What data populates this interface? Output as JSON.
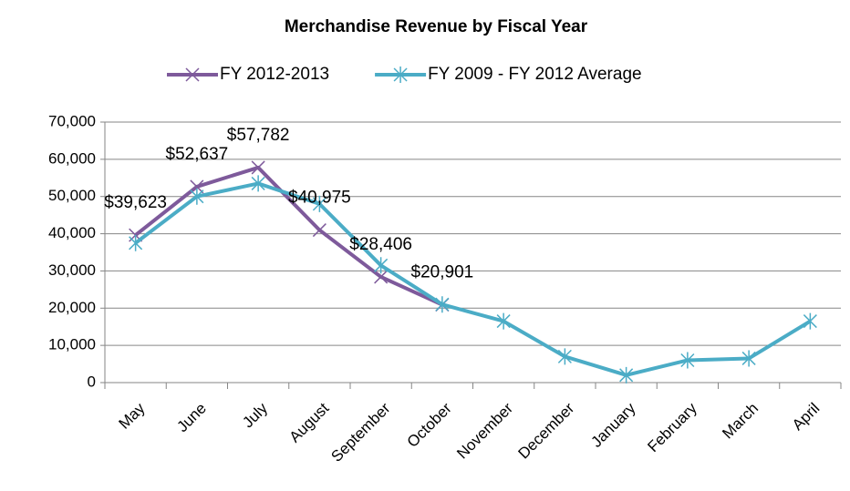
{
  "chart_data": {
    "type": "line",
    "title": "Merchandise Revenue by Fiscal Year",
    "categories": [
      "May",
      "June",
      "July",
      "August",
      "September",
      "October",
      "November",
      "December",
      "January",
      "February",
      "March",
      "April"
    ],
    "series": [
      {
        "name": "FY 2012-2013",
        "color": "#7e5a9b",
        "marker": "x",
        "values": [
          39623,
          52637,
          57782,
          40975,
          28406,
          20901,
          null,
          null,
          null,
          null,
          null,
          null
        ],
        "value_labels": [
          "$39,623",
          "$52,637",
          "$57,782",
          "$40,975",
          "$28,406",
          "$20,901",
          null,
          null,
          null,
          null,
          null,
          null
        ]
      },
      {
        "name": "FY 2009 - FY 2012 Average",
        "color": "#4bacc6",
        "marker": "star",
        "values": [
          37500,
          50000,
          53500,
          48000,
          31500,
          21000,
          16500,
          7000,
          2000,
          6000,
          6500,
          16500
        ]
      }
    ],
    "ylim": [
      0,
      70000
    ],
    "yticks": [
      0,
      {
        "value": 10000,
        "label": "10,000"
      },
      {
        "value": 20000,
        "label": "20,000"
      },
      {
        "value": 30000,
        "label": "30,000"
      },
      {
        "value": 40000,
        "label": "40,000"
      },
      {
        "value": 50000,
        "label": "50,000"
      },
      {
        "value": 60000,
        "label": "60,000"
      },
      {
        "value": 70000,
        "label": "70,000"
      }
    ],
    "grid": true,
    "legend": "top"
  }
}
